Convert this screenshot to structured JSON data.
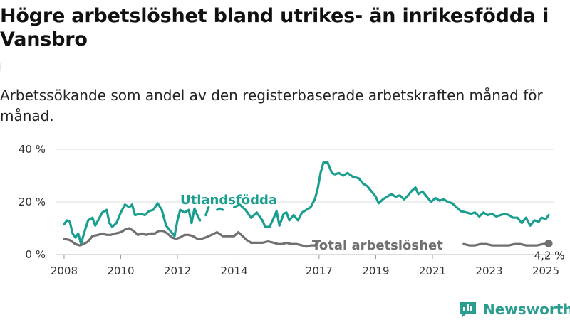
{
  "title": "Högre arbetslöshet bland utrikes- än inrikesfödda i Vansbro",
  "subtitle": "Arbetssökande som andel av den registerbaserade arbetskraften månad för månad.",
  "brand": {
    "name": "Newsworthy",
    "icon": "bar-chart-logo-icon",
    "color": "#2a9d8f"
  },
  "colors": {
    "foreign": "#1a9e8f",
    "total": "#707070",
    "grid": "#dddddd"
  },
  "chart_data": {
    "type": "line",
    "ylim": [
      0,
      40
    ],
    "xlim": [
      2007.7,
      2025.3
    ],
    "y_ticks": [
      {
        "value": 0,
        "label": "0 %"
      },
      {
        "value": 20,
        "label": "20 %"
      },
      {
        "value": 40,
        "label": "40 %"
      }
    ],
    "x_ticks": [
      {
        "value": 2008,
        "label": "2008"
      },
      {
        "value": 2010,
        "label": "2010"
      },
      {
        "value": 2012,
        "label": "2012"
      },
      {
        "value": 2014,
        "label": "2014"
      },
      {
        "value": 2017,
        "label": "2017"
      },
      {
        "value": 2019,
        "label": "2019"
      },
      {
        "value": 2021,
        "label": "2021"
      },
      {
        "value": 2023,
        "label": "2023"
      },
      {
        "value": 2025,
        "label": "2025"
      }
    ],
    "grid": true,
    "series": [
      {
        "name": "Utlandsfödda",
        "key": "foreign",
        "segments": [
          [
            [
              2008.0,
              11.5
            ],
            [
              2008.1,
              13
            ],
            [
              2008.2,
              12.5
            ],
            [
              2008.3,
              8
            ],
            [
              2008.4,
              6.5
            ],
            [
              2008.5,
              8
            ],
            [
              2008.6,
              4
            ],
            [
              2008.7,
              8
            ],
            [
              2008.85,
              13
            ],
            [
              2009.0,
              14
            ],
            [
              2009.1,
              11
            ],
            [
              2009.2,
              13
            ],
            [
              2009.35,
              16
            ],
            [
              2009.5,
              17
            ],
            [
              2009.6,
              12
            ],
            [
              2009.7,
              10.5
            ],
            [
              2009.85,
              12
            ],
            [
              2010.0,
              16
            ],
            [
              2010.15,
              19
            ],
            [
              2010.3,
              18
            ],
            [
              2010.4,
              19
            ],
            [
              2010.5,
              15
            ],
            [
              2010.7,
              15.5
            ],
            [
              2010.85,
              15
            ],
            [
              2011.0,
              16.5
            ],
            [
              2011.15,
              17
            ],
            [
              2011.3,
              19.5
            ],
            [
              2011.45,
              17
            ],
            [
              2011.6,
              11
            ],
            [
              2011.75,
              9
            ],
            [
              2011.9,
              7
            ],
            [
              2012.0,
              13
            ],
            [
              2012.1,
              17
            ],
            [
              2012.25,
              16
            ],
            [
              2012.4,
              17
            ],
            [
              2012.5,
              12
            ],
            [
              2012.6,
              17.5
            ],
            [
              2012.7,
              15
            ],
            [
              2012.8,
              13
            ]
          ],
          [
            [
              2013.0,
              15
            ],
            [
              2013.1,
              18
            ]
          ],
          [
            [
              2013.4,
              17
            ],
            [
              2013.5,
              17.5
            ],
            [
              2013.6,
              17
            ]
          ],
          [
            [
              2014.0,
              18
            ],
            [
              2014.2,
              19
            ],
            [
              2014.4,
              17
            ],
            [
              2014.6,
              14
            ],
            [
              2014.8,
              16
            ],
            [
              2015.0,
              13
            ],
            [
              2015.1,
              10.5
            ],
            [
              2015.25,
              10.5
            ],
            [
              2015.4,
              14
            ],
            [
              2015.5,
              16.5
            ],
            [
              2015.6,
              11
            ],
            [
              2015.75,
              15.5
            ],
            [
              2015.85,
              16
            ],
            [
              2015.95,
              13
            ],
            [
              2016.1,
              15
            ],
            [
              2016.25,
              13
            ],
            [
              2016.4,
              16
            ],
            [
              2016.55,
              17
            ],
            [
              2016.7,
              18
            ],
            [
              2016.85,
              21
            ],
            [
              2016.95,
              25
            ],
            [
              2017.05,
              31
            ],
            [
              2017.15,
              35
            ],
            [
              2017.3,
              35
            ],
            [
              2017.45,
              31
            ],
            [
              2017.55,
              30.5
            ],
            [
              2017.7,
              31
            ],
            [
              2017.85,
              30
            ],
            [
              2018.0,
              31
            ],
            [
              2018.2,
              29.5
            ],
            [
              2018.4,
              29
            ],
            [
              2018.55,
              27
            ],
            [
              2018.7,
              26
            ],
            [
              2018.85,
              24
            ],
            [
              2019.0,
              22
            ],
            [
              2019.1,
              19.5
            ],
            [
              2019.25,
              21
            ],
            [
              2019.4,
              22
            ],
            [
              2019.55,
              23
            ],
            [
              2019.7,
              22
            ],
            [
              2019.85,
              22.5
            ],
            [
              2020.0,
              21
            ],
            [
              2020.1,
              22
            ],
            [
              2020.25,
              24
            ],
            [
              2020.4,
              25.5
            ],
            [
              2020.5,
              23
            ],
            [
              2020.65,
              24
            ],
            [
              2020.8,
              22
            ],
            [
              2020.95,
              20
            ],
            [
              2021.1,
              21.5
            ],
            [
              2021.25,
              20.5
            ],
            [
              2021.4,
              21
            ],
            [
              2021.55,
              20
            ],
            [
              2021.7,
              19.5
            ],
            [
              2021.85,
              18
            ],
            [
              2022.0,
              16.5
            ],
            [
              2022.2,
              16
            ],
            [
              2022.35,
              15.5
            ],
            [
              2022.5,
              16
            ],
            [
              2022.65,
              14.5
            ],
            [
              2022.8,
              16
            ],
            [
              2022.95,
              15
            ],
            [
              2023.1,
              15.5
            ],
            [
              2023.25,
              14.5
            ],
            [
              2023.4,
              15
            ],
            [
              2023.55,
              15.5
            ],
            [
              2023.7,
              15
            ],
            [
              2023.85,
              14
            ],
            [
              2024.0,
              14
            ],
            [
              2024.15,
              12
            ],
            [
              2024.3,
              14
            ],
            [
              2024.45,
              11
            ],
            [
              2024.6,
              13
            ],
            [
              2024.75,
              12.5
            ],
            [
              2024.85,
              14
            ],
            [
              2025.0,
              13.5
            ],
            [
              2025.1,
              15
            ]
          ]
        ]
      },
      {
        "name": "Total arbetslöshet",
        "key": "total",
        "segments": [
          [
            [
              2008.0,
              6
            ],
            [
              2008.2,
              5.5
            ],
            [
              2008.4,
              4
            ],
            [
              2008.55,
              3.5
            ],
            [
              2008.7,
              4
            ],
            [
              2008.85,
              5
            ],
            [
              2009.0,
              7
            ],
            [
              2009.2,
              7.5
            ],
            [
              2009.35,
              8
            ],
            [
              2009.5,
              7.5
            ],
            [
              2009.65,
              7.5
            ],
            [
              2009.8,
              8
            ],
            [
              2010.0,
              8.5
            ],
            [
              2010.15,
              9.5
            ],
            [
              2010.3,
              10
            ],
            [
              2010.45,
              9
            ],
            [
              2010.6,
              7.5
            ],
            [
              2010.75,
              8
            ],
            [
              2010.9,
              7.5
            ],
            [
              2011.05,
              8
            ],
            [
              2011.2,
              8
            ],
            [
              2011.35,
              9
            ],
            [
              2011.5,
              9
            ],
            [
              2011.65,
              8
            ],
            [
              2011.8,
              6.5
            ],
            [
              2011.95,
              6
            ],
            [
              2012.1,
              6.5
            ],
            [
              2012.25,
              7.5
            ],
            [
              2012.4,
              7.5
            ],
            [
              2012.55,
              7
            ],
            [
              2012.7,
              6
            ],
            [
              2012.85,
              6
            ],
            [
              2013.0,
              6.5
            ],
            [
              2013.2,
              7.5
            ],
            [
              2013.4,
              8.5
            ],
            [
              2013.6,
              7
            ],
            [
              2013.8,
              7
            ],
            [
              2014.0,
              7
            ],
            [
              2014.15,
              8.5
            ],
            [
              2014.3,
              7
            ],
            [
              2014.45,
              5.5
            ],
            [
              2014.6,
              4.5
            ],
            [
              2014.8,
              4.5
            ],
            [
              2015.0,
              4.5
            ],
            [
              2015.2,
              5
            ],
            [
              2015.4,
              4.5
            ],
            [
              2015.55,
              4
            ],
            [
              2015.7,
              4
            ],
            [
              2015.85,
              4.5
            ],
            [
              2016.0,
              4
            ],
            [
              2016.2,
              4
            ],
            [
              2016.4,
              3.5
            ],
            [
              2016.55,
              3
            ],
            [
              2016.7,
              3.5
            ],
            [
              2016.85,
              3.5
            ],
            [
              2016.95,
              4.5
            ]
          ],
          [
            [
              2022.1,
              4
            ],
            [
              2022.3,
              3.5
            ],
            [
              2022.5,
              3.5
            ],
            [
              2022.7,
              4
            ],
            [
              2022.9,
              4
            ],
            [
              2023.1,
              3.5
            ],
            [
              2023.3,
              3.5
            ],
            [
              2023.5,
              3.5
            ],
            [
              2023.7,
              3.5
            ],
            [
              2023.9,
              4
            ],
            [
              2024.1,
              4
            ],
            [
              2024.3,
              3.5
            ],
            [
              2024.5,
              3.5
            ],
            [
              2024.7,
              3.5
            ],
            [
              2024.9,
              4
            ],
            [
              2025.1,
              4.2
            ]
          ]
        ]
      }
    ],
    "label_foreign": "Utlandsfödda",
    "label_total": "Total arbetslöshet",
    "end_point": {
      "x": 2025.1,
      "y": 4.2,
      "label": "4,2 %"
    }
  }
}
